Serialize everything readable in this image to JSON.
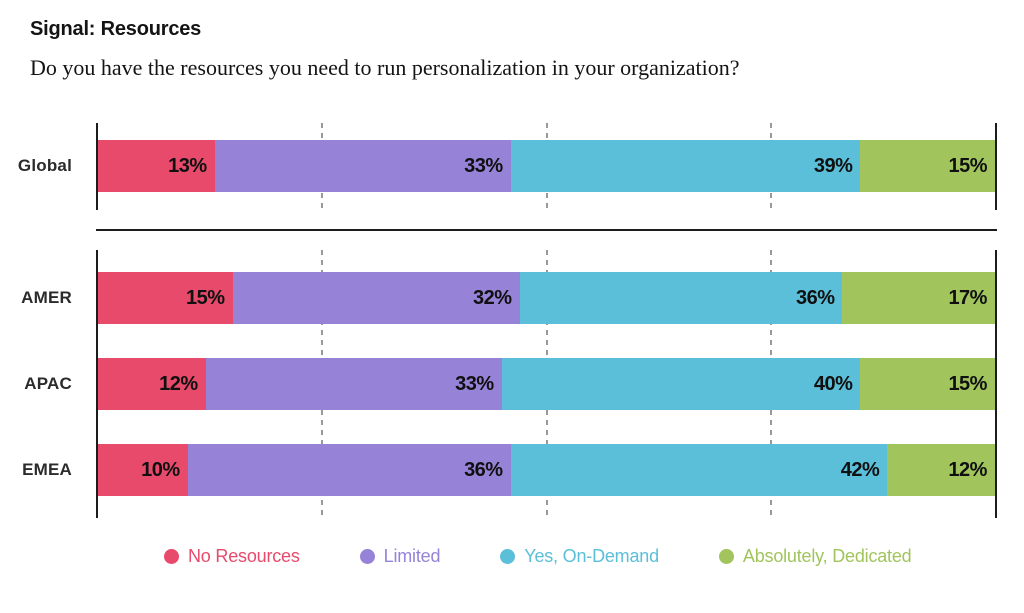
{
  "chart_data": {
    "type": "bar",
    "orientation": "horizontal",
    "stacked": true,
    "unit": "%",
    "title": "Signal: Resources",
    "subtitle": "Do you have the resources you need to run personalization in your organization?",
    "categories": [
      "Global",
      "AMER",
      "APAC",
      "EMEA"
    ],
    "sections": [
      [
        "Global"
      ],
      [
        "AMER",
        "APAC",
        "EMEA"
      ]
    ],
    "series": [
      {
        "name": "No Resources",
        "color": "#E84A6B",
        "values": [
          13,
          15,
          12,
          10
        ]
      },
      {
        "name": "Limited",
        "color": "#9683D8",
        "values": [
          33,
          32,
          33,
          36
        ]
      },
      {
        "name": "Yes, On-Demand",
        "color": "#5BBFD9",
        "values": [
          39,
          36,
          40,
          42
        ]
      },
      {
        "name": "Absolutely, Dedicated",
        "color": "#A1C55C",
        "values": [
          15,
          17,
          15,
          12
        ]
      }
    ],
    "xlim": [
      0,
      100
    ],
    "gridlines_percent": [
      25,
      50,
      75
    ],
    "gridline_style": "dashed",
    "axis_color": "#1c1c1c",
    "value_label_position": "inside-right",
    "legend_position": "bottom"
  },
  "legend": {
    "items": [
      {
        "label": "No Resources",
        "color": "#E84A6B"
      },
      {
        "label": "Limited",
        "color": "#9683D8"
      },
      {
        "label": "Yes, On-Demand",
        "color": "#5BBFD9"
      },
      {
        "label": "Absolutely, Dedicated",
        "color": "#A1C55C"
      }
    ]
  }
}
